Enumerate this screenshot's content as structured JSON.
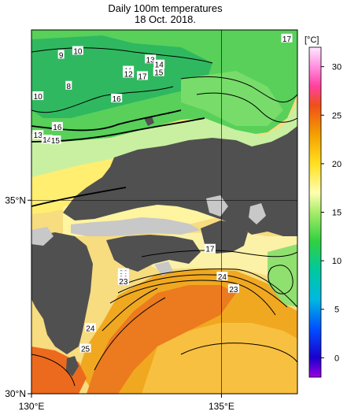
{
  "title": {
    "line1": "Daily 100m temperatures",
    "line2": "18 Oct. 2018."
  },
  "axes": {
    "x_ticks": [
      {
        "lon": 130,
        "label": "130°E"
      },
      {
        "lon": 135,
        "label": "135°E"
      }
    ],
    "y_ticks": [
      {
        "lat": 30,
        "label": "30°N"
      },
      {
        "lat": 35,
        "label": "35°N"
      }
    ],
    "lon_range": [
      130,
      137.0
    ],
    "lat_range": [
      30,
      39.4
    ]
  },
  "colorbar": {
    "unit": "[°C]",
    "min": -2,
    "max": 32,
    "tick_values": [
      0,
      5,
      10,
      15,
      20,
      25,
      30
    ],
    "tick_labels": [
      "0",
      "5",
      "10",
      "15",
      "20",
      "25",
      "30"
    ],
    "stops": [
      {
        "t": -2,
        "color": "#9a00e0"
      },
      {
        "t": 0,
        "color": "#1a00cc"
      },
      {
        "t": 3,
        "color": "#0050ff"
      },
      {
        "t": 6,
        "color": "#00b8e0"
      },
      {
        "t": 9,
        "color": "#00c8a0"
      },
      {
        "t": 12,
        "color": "#30d040"
      },
      {
        "t": 15,
        "color": "#a8ec6a"
      },
      {
        "t": 17,
        "color": "#ffffb0"
      },
      {
        "t": 20,
        "color": "#ffe020"
      },
      {
        "t": 23,
        "color": "#f4a000"
      },
      {
        "t": 26,
        "color": "#ee5018"
      },
      {
        "t": 28,
        "color": "#ff40a0"
      },
      {
        "t": 30,
        "color": "#ff90e0"
      },
      {
        "t": 32,
        "color": "#ffe8ff"
      }
    ]
  },
  "contour_labels": [
    {
      "text": "10",
      "lon": 131.22,
      "lat": 38.86
    },
    {
      "text": "9",
      "lon": 130.78,
      "lat": 38.76
    },
    {
      "text": "13",
      "lon": 133.13,
      "lat": 38.64
    },
    {
      "text": "14",
      "lon": 133.36,
      "lat": 38.51
    },
    {
      "text": "15",
      "lon": 133.35,
      "lat": 38.31
    },
    {
      "text": "11",
      "lon": 132.55,
      "lat": 38.35
    },
    {
      "text": "12",
      "lon": 132.55,
      "lat": 38.27
    },
    {
      "text": "17",
      "lon": 132.92,
      "lat": 38.21
    },
    {
      "text": "8",
      "lon": 130.98,
      "lat": 37.96
    },
    {
      "text": "16",
      "lon": 132.24,
      "lat": 37.63
    },
    {
      "text": "10",
      "lon": 130.17,
      "lat": 37.69
    },
    {
      "text": "16",
      "lon": 130.68,
      "lat": 36.9
    },
    {
      "text": "13",
      "lon": 130.17,
      "lat": 36.69
    },
    {
      "text": "14",
      "lon": 130.41,
      "lat": 36.57
    },
    {
      "text": "15",
      "lon": 130.63,
      "lat": 36.55
    },
    {
      "text": "17",
      "lon": 136.72,
      "lat": 39.18
    },
    {
      "text": "17",
      "lon": 134.7,
      "lat": 33.75
    },
    {
      "text": "20",
      "lon": 132.42,
      "lat": 33.12
    },
    {
      "text": "21",
      "lon": 132.42,
      "lat": 33.05
    },
    {
      "text": "22",
      "lon": 132.42,
      "lat": 32.98
    },
    {
      "text": "23",
      "lon": 132.42,
      "lat": 32.91
    },
    {
      "text": "24",
      "lon": 135.02,
      "lat": 33.03
    },
    {
      "text": "23",
      "lon": 135.32,
      "lat": 32.71
    },
    {
      "text": "24",
      "lon": 131.55,
      "lat": 31.7
    },
    {
      "text": "25",
      "lon": 131.42,
      "lat": 31.17
    }
  ],
  "grid_lines": {
    "lon": [
      135
    ],
    "lat": [
      35
    ]
  }
}
